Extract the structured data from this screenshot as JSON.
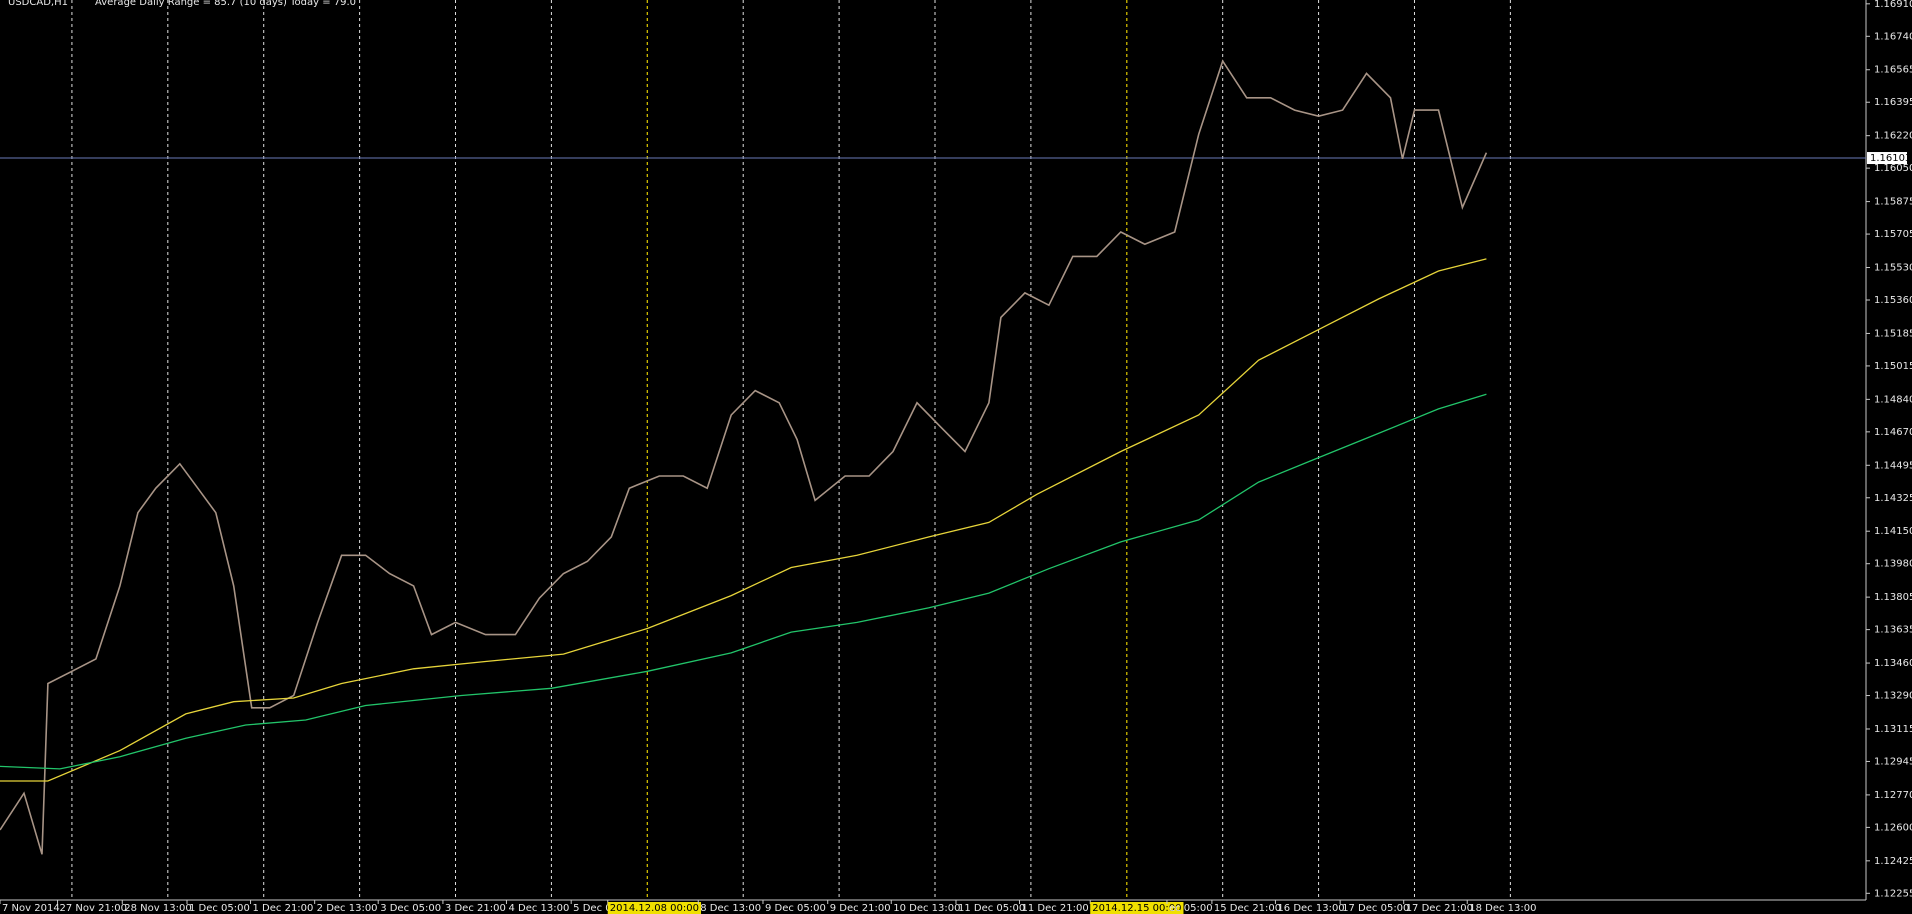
{
  "chart_data": {
    "type": "line",
    "title": "USDCAD,H1",
    "subtitle": "Average Daily Range = 85.7 (10 days)   Today = 79.0",
    "xlim": [
      0,
      311
    ],
    "ylim": [
      1.1222,
      1.1693
    ],
    "yticks": [
      {
        "value": 1.1691,
        "label": "1.16910"
      },
      {
        "value": 1.1674,
        "label": "1.16740"
      },
      1.16565,
      1.16395,
      {
        "value": 1.1622,
        "label": "1.16220"
      },
      {
        "value": 1.1605,
        "label": "1.16050"
      },
      1.15875,
      1.15705,
      {
        "value": 1.1553,
        "label": "1.15530"
      },
      {
        "value": 1.1536,
        "label": "1.15360"
      },
      1.15185,
      1.15015,
      {
        "value": 1.1484,
        "label": "1.14840"
      },
      {
        "value": 1.1467,
        "label": "1.14670"
      },
      1.14495,
      1.14325,
      {
        "value": 1.1415,
        "label": "1.14150"
      },
      {
        "value": 1.1398,
        "label": "1.13980"
      },
      1.13805,
      1.13635,
      {
        "value": 1.1346,
        "label": "1.13460"
      },
      {
        "value": 1.1329,
        "label": "1.13290"
      },
      1.13115,
      1.12945,
      {
        "value": 1.1277,
        "label": "1.12770"
      },
      {
        "value": 1.126,
        "label": "1.12600"
      },
      1.12425,
      1.12255
    ],
    "xticks": [
      {
        "value": 0,
        "label": "7 Nov 2014"
      },
      {
        "value": 9.6,
        "label": "27 Nov 21:00"
      },
      {
        "value": 20.4,
        "label": "28 Nov 13:00"
      },
      {
        "value": 31.2,
        "label": "1 Dec 05:00"
      },
      {
        "value": 41.8,
        "label": "1 Dec 21:00"
      },
      {
        "value": 52.5,
        "label": "2 Dec 13:00"
      },
      {
        "value": 63.1,
        "label": "3 Dec 05:00"
      },
      {
        "value": 73.9,
        "label": "3 Dec 21:00"
      },
      {
        "value": 84.5,
        "label": "4 Dec 13:00"
      },
      {
        "value": 95.3,
        "label": "5 Dec 05"
      },
      {
        "value": 101.4,
        "label": "2014.12.08 00:00"
      },
      {
        "value": 116.5,
        "label": "8 Dec 13:00"
      },
      {
        "value": 127.3,
        "label": "9 Dec 05:00"
      },
      {
        "value": 138.1,
        "label": "9 Dec 21:00"
      },
      {
        "value": 148.7,
        "label": "10 Dec 13:00"
      },
      {
        "value": 159.5,
        "label": "11 Dec 05:00"
      },
      {
        "value": 170.1,
        "label": "11 Dec 21:00"
      },
      {
        "value": 181.9,
        "label": "2014.12.15 00:00"
      },
      {
        "value": 194.7,
        "label": "ec 05:00"
      },
      {
        "value": 202.2,
        "label": "15 Dec 21:00"
      },
      {
        "value": 212.8,
        "label": "16 Dec 13:00"
      },
      {
        "value": 223.6,
        "label": "17 Dec 05:00"
      },
      {
        "value": 234.2,
        "label": "17 Dec 21:00"
      },
      {
        "value": 244.8,
        "label": "18 Dec 13:00"
      }
    ],
    "highlighted_xticks": [
      10,
      17
    ],
    "separators": [
      12,
      28,
      44,
      60,
      76,
      92,
      108,
      124,
      140,
      156,
      172,
      188,
      204,
      220,
      236,
      252
    ],
    "week_separators": [
      108,
      188
    ],
    "separator_color": "#e0e0e0",
    "week_separator_color": "#d8c400",
    "price_line": 1.16103,
    "price_line_color": "#6a7ab8",
    "series": [
      {
        "name": "USDCAD",
        "color": "#a89486",
        "x": [
          0,
          4,
          7,
          8,
          12,
          16,
          20,
          23,
          26,
          30,
          33,
          36,
          39,
          42,
          45,
          49,
          53,
          57,
          61,
          65,
          69,
          72,
          76,
          81,
          86,
          90,
          94,
          98,
          102,
          105,
          110,
          114,
          118,
          122,
          126,
          130,
          133,
          136,
          141,
          145,
          149,
          153,
          157,
          161,
          165,
          167,
          171,
          175,
          179,
          183,
          187,
          191,
          196,
          200,
          204,
          208,
          212,
          216,
          220,
          224,
          228,
          232,
          234,
          236,
          240,
          244,
          248
        ],
        "values": [
          1.12587,
          1.12779,
          1.12459,
          1.13353,
          1.13417,
          1.13481,
          1.13864,
          1.14247,
          1.14375,
          1.14503,
          1.14375,
          1.14247,
          1.13864,
          1.13226,
          1.13226,
          1.1329,
          1.13673,
          1.14024,
          1.14024,
          1.13928,
          1.13864,
          1.13609,
          1.13673,
          1.13609,
          1.13609,
          1.138,
          1.13928,
          1.13992,
          1.1412,
          1.14375,
          1.14439,
          1.14439,
          1.14375,
          1.14758,
          1.14886,
          1.14822,
          1.1463,
          1.14311,
          1.14439,
          1.14439,
          1.14567,
          1.14822,
          1.14694,
          1.14567,
          1.14822,
          1.15269,
          1.15397,
          1.15333,
          1.15588,
          1.15588,
          1.15716,
          1.15652,
          1.15716,
          1.16227,
          1.1661,
          1.16418,
          1.16418,
          1.16354,
          1.16322,
          1.16354,
          1.16546,
          1.16418,
          1.16099,
          1.16354,
          1.16354,
          1.15844,
          1.16131
        ]
      },
      {
        "name": "MA yellow",
        "color": "#e6d43a",
        "x": [
          0,
          8,
          20,
          31,
          39,
          49,
          57,
          69,
          81,
          94,
          108,
          122,
          132,
          143,
          155,
          165,
          173,
          187,
          200,
          210,
          220,
          230,
          240,
          248
        ],
        "values": [
          1.12843,
          1.12843,
          1.13002,
          1.13194,
          1.13258,
          1.13277,
          1.13353,
          1.1343,
          1.13468,
          1.13507,
          1.13641,
          1.13813,
          1.1396,
          1.14024,
          1.1412,
          1.14196,
          1.14343,
          1.14567,
          1.14758,
          1.15045,
          1.15205,
          1.15365,
          1.15512,
          1.15575
        ]
      },
      {
        "name": "MA green",
        "color": "#22c46a",
        "x": [
          0,
          10,
          20,
          31,
          41,
          51,
          61,
          77,
          92,
          108,
          122,
          132,
          143,
          155,
          165,
          175,
          187,
          200,
          210,
          220,
          230,
          240,
          248
        ],
        "values": [
          1.12919,
          1.12906,
          1.1297,
          1.13066,
          1.13136,
          1.13162,
          1.13238,
          1.1329,
          1.13328,
          1.13417,
          1.13513,
          1.13622,
          1.13673,
          1.13749,
          1.13826,
          1.13954,
          1.14094,
          1.14209,
          1.14407,
          1.14535,
          1.14662,
          1.1479,
          1.14867
        ]
      }
    ]
  }
}
